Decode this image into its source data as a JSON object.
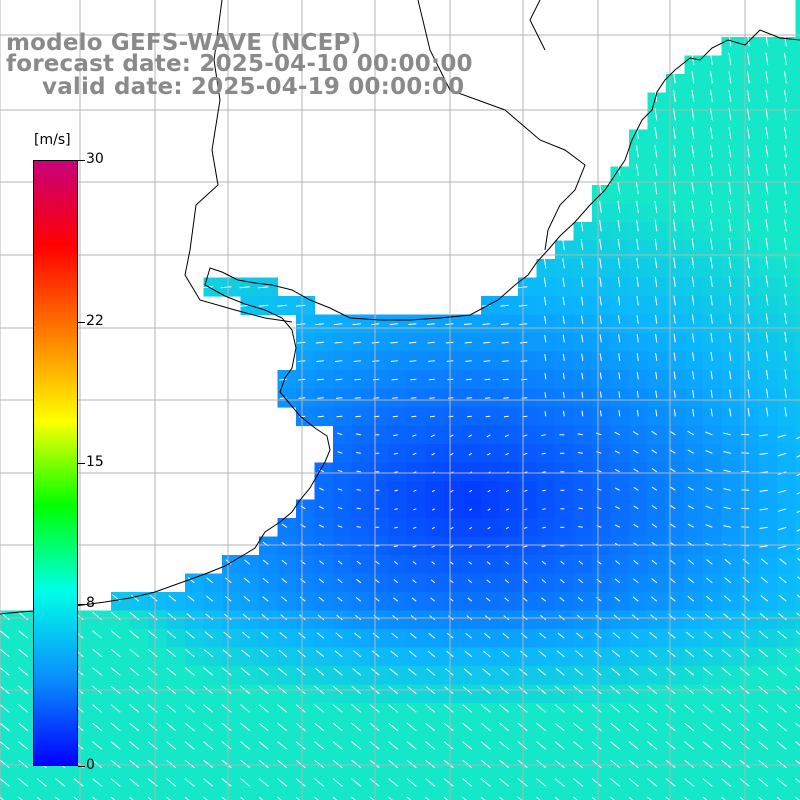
{
  "title": {
    "line1": "modelo GEFS-WAVE (NCEP)",
    "line2": "forecast date: 2025-04-10 00:00:00",
    "line3": "valid date: 2025-04-19 00:00:00"
  },
  "colorbar": {
    "unit": "[m/s]",
    "min": 0,
    "max": 30,
    "ticks": [
      {
        "value": 30,
        "label": "30"
      },
      {
        "value": 22,
        "label": "22"
      },
      {
        "value": 15,
        "label": "15"
      },
      {
        "value": 8,
        "label": "8"
      },
      {
        "value": 0,
        "label": "0"
      }
    ],
    "colors": [
      "#0000ff",
      "#0a8cff",
      "#00ffe6",
      "#00ff00",
      "#ffff00",
      "#ff8000",
      "#ff0000",
      "#c8007a"
    ]
  },
  "map": {
    "ocean_field_colors": {
      "calm": "#0018ff",
      "light": "#0a6cff",
      "moderate": "#0bb4ff",
      "fresh": "#15e8c8"
    },
    "land_color": "#ffffff",
    "coast_color": "#000000",
    "grid_color": "#b4b4b4",
    "vector_color": "#ffffff"
  }
}
